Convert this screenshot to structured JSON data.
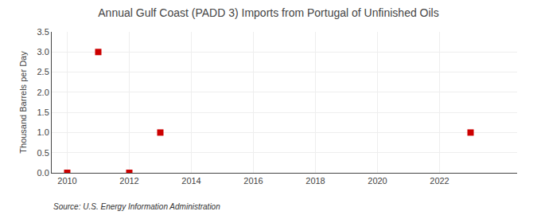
{
  "chart_data": {
    "type": "scatter",
    "title": "Annual Gulf Coast (PADD 3) Imports from Portugal of Unfinished Oils",
    "ylabel": "Thousand Barrels per Day",
    "annotations": [
      "Source: U.S. Energy Information Administration"
    ],
    "x": [
      2010,
      2011,
      2012,
      2013,
      2023
    ],
    "values": [
      0.0,
      3.0,
      0.0,
      1.0,
      1.0
    ],
    "color": "#cc0000",
    "marker": "square",
    "xlim": [
      2009.5,
      2024.5
    ],
    "xticks": [
      2010,
      2012,
      2014,
      2016,
      2018,
      2020,
      2022
    ],
    "ylim": [
      0.0,
      3.5
    ],
    "yticks": [
      {
        "value": 0.0,
        "label": "0.0"
      },
      {
        "value": 0.5,
        "label": "0.5"
      },
      {
        "value": 1.0,
        "label": "1.0"
      },
      {
        "value": 1.5,
        "label": "1.5"
      },
      {
        "value": 2.0,
        "label": "2.0"
      },
      {
        "value": 2.5,
        "label": "2.5"
      },
      {
        "value": 3.0,
        "label": "3.0"
      },
      {
        "value": 3.5,
        "label": "3.5"
      }
    ],
    "grid": true
  }
}
